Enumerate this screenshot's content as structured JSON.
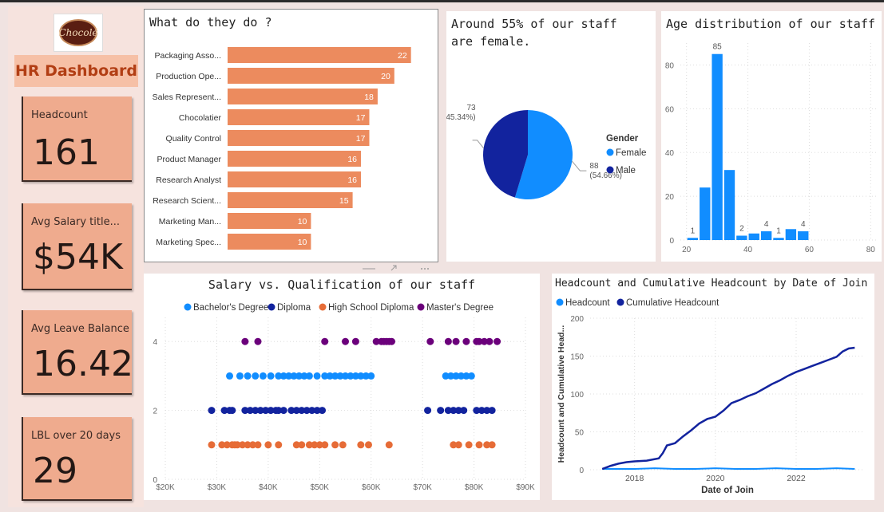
{
  "sidebar": {
    "logo_text": "Chocolé",
    "title": "HR Dashboard",
    "kpis": [
      {
        "label": "Headcount",
        "value": "161"
      },
      {
        "label": "Avg Salary title...",
        "value": "$54K"
      },
      {
        "label": "Avg Leave Balance",
        "value": "16.42"
      },
      {
        "label": "LBL over 20 days",
        "value": "29"
      }
    ]
  },
  "colors": {
    "bar_orange": "#ec8b5e",
    "female_blue": "#118dff",
    "male_navy": "#12239e",
    "bachelor": "#118dff",
    "diploma": "#12239e",
    "high_school": "#e66c37",
    "masters": "#6b007b"
  },
  "chart_data": [
    {
      "type": "bar",
      "orientation": "horizontal",
      "title": "What do they do ?",
      "categories": [
        "Packaging Asso...",
        "Production Ope...",
        "Sales Represent...",
        "Chocolatier",
        "Quality Control",
        "Product Manager",
        "Research Analyst",
        "Research Scient...",
        "Marketing Man...",
        "Marketing Spec..."
      ],
      "values": [
        22,
        20,
        18,
        17,
        17,
        16,
        16,
        15,
        10,
        10
      ],
      "xlim": [
        0,
        25
      ]
    },
    {
      "type": "pie",
      "title": "Around 55% of our staff are female.",
      "legend_title": "Gender",
      "slices": [
        {
          "name": "Female",
          "value": 88,
          "label": "88",
          "pct_label": "(54.66%)"
        },
        {
          "name": "Male",
          "value": 73,
          "label": "73",
          "pct_label": "(45.34%)"
        }
      ],
      "legend_position": "right"
    },
    {
      "type": "bar",
      "title": "Age distribution of our staff",
      "bins": [
        [
          22,
          25
        ],
        [
          25,
          28
        ],
        [
          28,
          31
        ],
        [
          31,
          34
        ],
        [
          34,
          37
        ],
        [
          37,
          40
        ],
        [
          40,
          43
        ],
        [
          43,
          46
        ],
        [
          46,
          49
        ],
        [
          49,
          52
        ],
        [
          52,
          55
        ],
        [
          55,
          58
        ],
        [
          58,
          61
        ]
      ],
      "counts": [
        1,
        24,
        85,
        32,
        2,
        3,
        4,
        1,
        5,
        4,
        0,
        0,
        0
      ],
      "visible_labels": [
        1,
        null,
        85,
        null,
        2,
        null,
        4,
        1,
        null,
        4
      ],
      "bars": [
        {
          "x0": 20,
          "x1": 24,
          "count": 1,
          "label": "1"
        },
        {
          "x0": 24,
          "x1": 28,
          "count": 24,
          "label": ""
        },
        {
          "x0": 28,
          "x1": 32,
          "count": 85,
          "label": "85"
        },
        {
          "x0": 32,
          "x1": 36,
          "count": 32,
          "label": ""
        },
        {
          "x0": 36,
          "x1": 40,
          "count": 2,
          "label": "2"
        },
        {
          "x0": 40,
          "x1": 44,
          "count": 3,
          "label": ""
        },
        {
          "x0": 44,
          "x1": 48,
          "count": 4,
          "label": "4"
        },
        {
          "x0": 48,
          "x1": 52,
          "count": 1,
          "label": "1"
        },
        {
          "x0": 52,
          "x1": 56,
          "count": 5,
          "label": ""
        },
        {
          "x0": 56,
          "x1": 60,
          "count": 4,
          "label": "4"
        }
      ],
      "xticks": [
        "20",
        "40",
        "60",
        "80"
      ],
      "xtick_values": [
        20,
        40,
        60,
        80
      ],
      "yticks": [
        "0",
        "20",
        "40",
        "60",
        "80"
      ],
      "xlim": [
        18,
        82
      ],
      "ylim": [
        0,
        90
      ],
      "grid": true
    },
    {
      "type": "scatter",
      "title": "Salary vs. Qualification of our staff",
      "legend_position": "top",
      "xticks": [
        "$20K",
        "$30K",
        "$40K",
        "$50K",
        "$60K",
        "$70K",
        "$80K",
        "$90K"
      ],
      "xlim": [
        20,
        90
      ],
      "yticks": [
        "0",
        "2",
        "4"
      ],
      "ylim": [
        0,
        4.7
      ],
      "series": [
        {
          "name": "Bachelor's Degree",
          "y": 3,
          "x": [
            32.5,
            34.5,
            36,
            37.5,
            39,
            40.5,
            42,
            43,
            44,
            45,
            46,
            47,
            48,
            49.5,
            51,
            52,
            53,
            54,
            55,
            56,
            57,
            58,
            59,
            60,
            74.5,
            75.5,
            76.5,
            77.5,
            78.5,
            79.5
          ]
        },
        {
          "name": "Diploma",
          "y": 2,
          "x": [
            29,
            31.5,
            32.5,
            33,
            35.5,
            36.5,
            37.5,
            38.5,
            39.5,
            40.5,
            41.5,
            42,
            43,
            44.5,
            45.5,
            46.5,
            47.5,
            48.5,
            49.5,
            50.5,
            71,
            73.5,
            75,
            76,
            77,
            78,
            80.5,
            81.5,
            82.5,
            83.5
          ]
        },
        {
          "name": "High School Diploma",
          "y": 1,
          "x": [
            29,
            31,
            32,
            33,
            33.5,
            34,
            35,
            36,
            37,
            38,
            40,
            42,
            45.5,
            46.5,
            48,
            49,
            50,
            51,
            53,
            54.5,
            58,
            59.5,
            63.5,
            76,
            77,
            79,
            81,
            82.5,
            83.5
          ]
        },
        {
          "name": "Master's Degree",
          "y": 4,
          "x": [
            35.5,
            38,
            51,
            55,
            57,
            61,
            62,
            62.5,
            63,
            63.5,
            64,
            71.5,
            75,
            76.5,
            78.5,
            80.5,
            81,
            82,
            83,
            84.5
          ]
        }
      ]
    },
    {
      "type": "line",
      "title": "Headcount and Cumulative Headcount by Date of Join",
      "xlabel": "Date of Join",
      "ylabel": "Headcount and Cumulative Head...",
      "legend_position": "top-left",
      "xticks": [
        "2018",
        "2020",
        "2022"
      ],
      "xtick_values": [
        2018,
        2020,
        2022
      ],
      "yticks": [
        "0",
        "50",
        "100",
        "150",
        "200"
      ],
      "xlim": [
        2016.9,
        2023.7
      ],
      "ylim": [
        0,
        200
      ],
      "series": [
        {
          "name": "Headcount",
          "x": [
            2017.2,
            2017.6,
            2018.0,
            2018.5,
            2019.0,
            2019.5,
            2020.0,
            2020.5,
            2021.0,
            2021.5,
            2022.0,
            2022.5,
            2023.0,
            2023.45
          ],
          "y": [
            1,
            1,
            1,
            2,
            1,
            1,
            2,
            1,
            1,
            2,
            1,
            1,
            2,
            1
          ]
        },
        {
          "name": "Cumulative Headcount",
          "x": [
            2017.2,
            2017.4,
            2017.6,
            2017.8,
            2018.0,
            2018.3,
            2018.6,
            2018.7,
            2018.8,
            2019.0,
            2019.2,
            2019.4,
            2019.6,
            2019.8,
            2020.0,
            2020.2,
            2020.4,
            2020.6,
            2020.8,
            2021.0,
            2021.2,
            2021.4,
            2021.6,
            2021.8,
            2022.0,
            2022.2,
            2022.4,
            2022.6,
            2022.8,
            2023.0,
            2023.15,
            2023.3,
            2023.45
          ],
          "y": [
            1,
            5,
            8,
            10,
            11,
            12,
            15,
            22,
            32,
            35,
            44,
            52,
            61,
            67,
            70,
            78,
            88,
            92,
            97,
            101,
            107,
            113,
            118,
            124,
            129,
            133,
            137,
            141,
            145,
            149,
            156,
            160,
            161
          ]
        }
      ]
    }
  ]
}
